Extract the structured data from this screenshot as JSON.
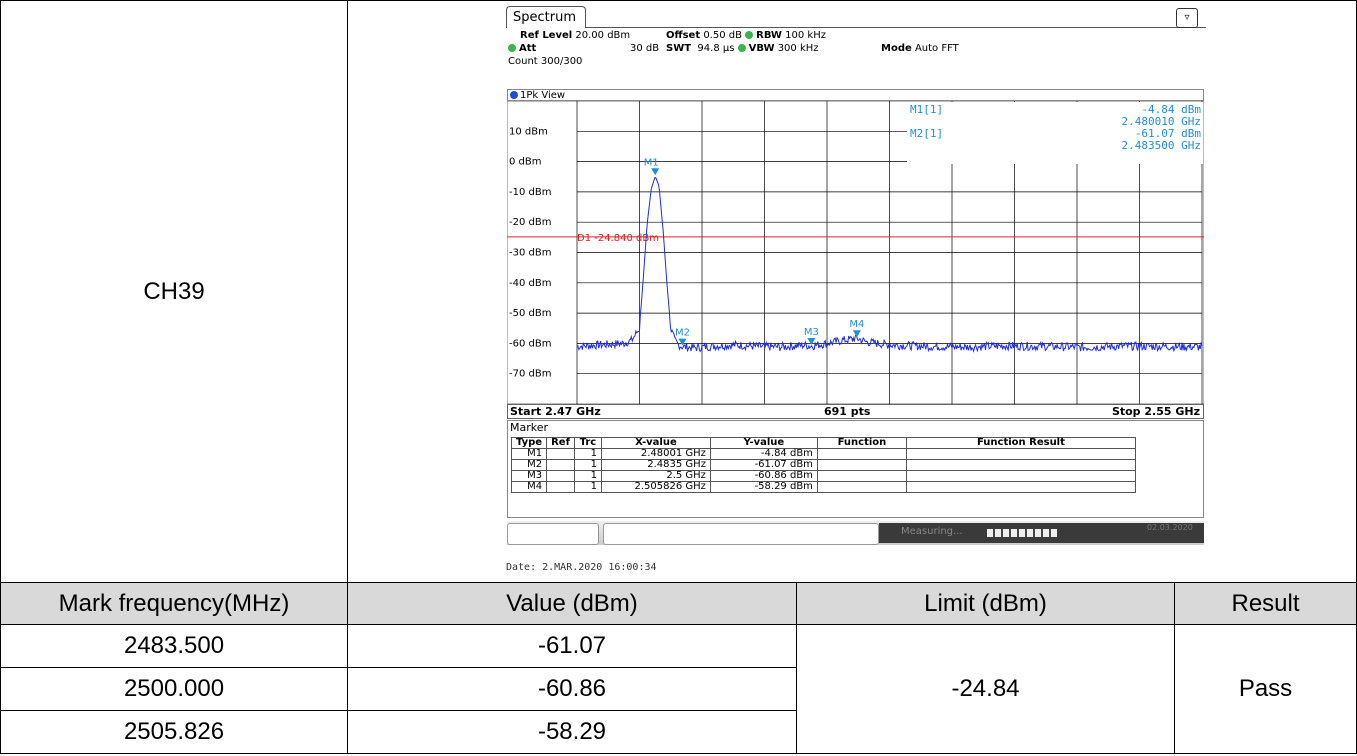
{
  "channel_label": "CH39",
  "analyzer": {
    "tab": "Spectrum",
    "settings": {
      "ref_level_label": "Ref Level",
      "ref_level": "20.00 dBm",
      "offset_label": "Offset",
      "offset": "0.50 dB",
      "rbw_label": "RBW",
      "rbw": "100 kHz",
      "att_label": "Att",
      "att": "30 dB",
      "swt_label": "SWT",
      "swt": "94.8 µs",
      "vbw_label": "VBW",
      "vbw": "300 kHz",
      "mode_label": "Mode",
      "mode": "Auto FFT",
      "count": "Count 300/300"
    },
    "view_label": "1Pk View",
    "marker_readout": {
      "m1_name": "M1[1]",
      "m1_level": "-4.84 dBm",
      "m1_freq": "2.480010 GHz",
      "m2_name": "M2[1]",
      "m2_level": "-61.07 dBm",
      "m2_freq": "2.483500 GHz"
    },
    "start": "Start 2.47 GHz",
    "points": "691 pts",
    "stop": "Stop 2.55 GHz",
    "marker_table": {
      "title": "Marker",
      "headers": [
        "Type",
        "Ref",
        "Trc",
        "X-value",
        "Y-value",
        "Function",
        "Function Result"
      ],
      "rows": [
        [
          "M1",
          "",
          "1",
          "2.48001 GHz",
          "-4.84 dBm",
          "",
          ""
        ],
        [
          "M2",
          "",
          "1",
          "2.4835 GHz",
          "-61.07 dBm",
          "",
          ""
        ],
        [
          "M3",
          "",
          "1",
          "2.5 GHz",
          "-60.86 dBm",
          "",
          ""
        ],
        [
          "M4",
          "",
          "1",
          "2.505826 GHz",
          "-58.29 dBm",
          "",
          ""
        ]
      ]
    },
    "status_text": "Measuring...",
    "status_date": "02.03.2020",
    "date_line": "Date: 2.MAR.2020  16:00:34"
  },
  "chart_data": {
    "type": "line",
    "x_unit": "GHz",
    "y_unit": "dBm",
    "xlim": [
      2.47,
      2.55
    ],
    "ylim": [
      -80,
      20
    ],
    "y_ticks": [
      10,
      0,
      -10,
      -20,
      -30,
      -40,
      -50,
      -60,
      -70
    ],
    "y_tick_labels": [
      "10 dBm",
      "0 dBm",
      "-10 dBm",
      "-20 dBm",
      "-30 dBm",
      "-40 dBm",
      "-50 dBm",
      "-60 dBm",
      "-70 dBm"
    ],
    "display_line": {
      "name": "D1",
      "value": -24.84,
      "label": "D1  -24.840 dBm",
      "color": "#e02020"
    },
    "trace_color": "#1e2de0",
    "marker_color": "#1f8fd8",
    "series": [
      {
        "x": [
          2.47,
          2.473,
          2.476,
          2.477,
          2.478,
          2.4785,
          2.479,
          2.4795,
          2.48,
          2.48001,
          2.4805,
          2.481,
          2.4815,
          2.482,
          2.4825,
          2.483,
          2.4835,
          2.485,
          2.487,
          2.49,
          2.493,
          2.496,
          2.499,
          2.5,
          2.502,
          2.504,
          2.505826,
          2.507,
          2.51,
          2.515,
          2.52,
          2.525,
          2.53,
          2.535,
          2.54,
          2.545,
          2.55
        ],
        "values": [
          -61,
          -60.5,
          -60,
          -59,
          -55,
          -38,
          -20,
          -9,
          -5,
          -4.84,
          -8,
          -22,
          -40,
          -55,
          -59,
          -60.5,
          -61.07,
          -61.5,
          -61,
          -60.5,
          -61,
          -61.2,
          -60.6,
          -60.86,
          -60,
          -59,
          -58.29,
          -59.5,
          -60.5,
          -61,
          -61.2,
          -60.8,
          -61,
          -61.3,
          -60.9,
          -61,
          -61.2
        ]
      }
    ],
    "markers": [
      {
        "label": "M1",
        "x": 2.48001,
        "y": -4.84
      },
      {
        "label": "M2",
        "x": 2.4835,
        "y": -61.07
      },
      {
        "label": "M3",
        "x": 2.5,
        "y": -60.86
      },
      {
        "label": "M4",
        "x": 2.505826,
        "y": -58.29
      }
    ]
  },
  "results_table": {
    "headers": [
      "Mark frequency(MHz)",
      "Value (dBm)",
      "Limit (dBm)",
      "Result"
    ],
    "rows": [
      {
        "freq": "2483.500",
        "value": "-61.07"
      },
      {
        "freq": "2500.000",
        "value": "-60.86"
      },
      {
        "freq": "2505.826",
        "value": "-58.29"
      }
    ],
    "limit": "-24.84",
    "result": "Pass"
  }
}
